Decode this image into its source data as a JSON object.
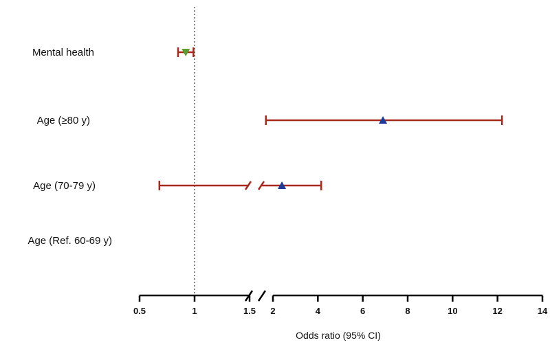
{
  "chart_data": {
    "type": "forest",
    "title": "",
    "xlabel": "Odds ratio (95% CI)",
    "ylabel": "",
    "x_axis": {
      "broken": true,
      "segments": [
        {
          "range": [
            0.5,
            1.5
          ],
          "ticks": [
            0.5,
            1,
            1.5
          ],
          "tick_labels": [
            "0.5",
            "1",
            "1.5"
          ]
        },
        {
          "range": [
            2,
            14
          ],
          "ticks": [
            2,
            4,
            6,
            8,
            10,
            12,
            14
          ],
          "tick_labels": [
            "2",
            "4",
            "6",
            "8",
            "10",
            "12",
            "14"
          ]
        }
      ]
    },
    "reference_line": {
      "x": 1,
      "style": "dotted"
    },
    "categories": [
      "Mental health",
      "Age (≥80 y)",
      "Age (70-79 y)",
      "Age (Ref. 60-69 y)"
    ],
    "rows": [
      {
        "label": "Mental health",
        "estimate": 0.92,
        "ci_low": 0.85,
        "ci_high": 0.99,
        "marker": "triangle-down",
        "marker_color": "#5a9e2e"
      },
      {
        "label": "Age (≥80 y)",
        "estimate": 6.9,
        "ci_low": 1.85,
        "ci_high": 12.2,
        "marker": "triangle-up",
        "marker_color": "#1f3a99"
      },
      {
        "label": "Age (70-79 y)",
        "estimate": 2.4,
        "ci_low": 0.68,
        "ci_high": 4.15,
        "marker": "triangle-up",
        "marker_color": "#1f3a99"
      },
      {
        "label": "Age (Ref. 60-69 y)",
        "estimate": null,
        "ci_low": null,
        "ci_high": null
      }
    ],
    "grid": false,
    "legend": "none"
  },
  "colors": {
    "ci_line": "#a8281c",
    "axis": "#000000",
    "reference": "#333333"
  }
}
